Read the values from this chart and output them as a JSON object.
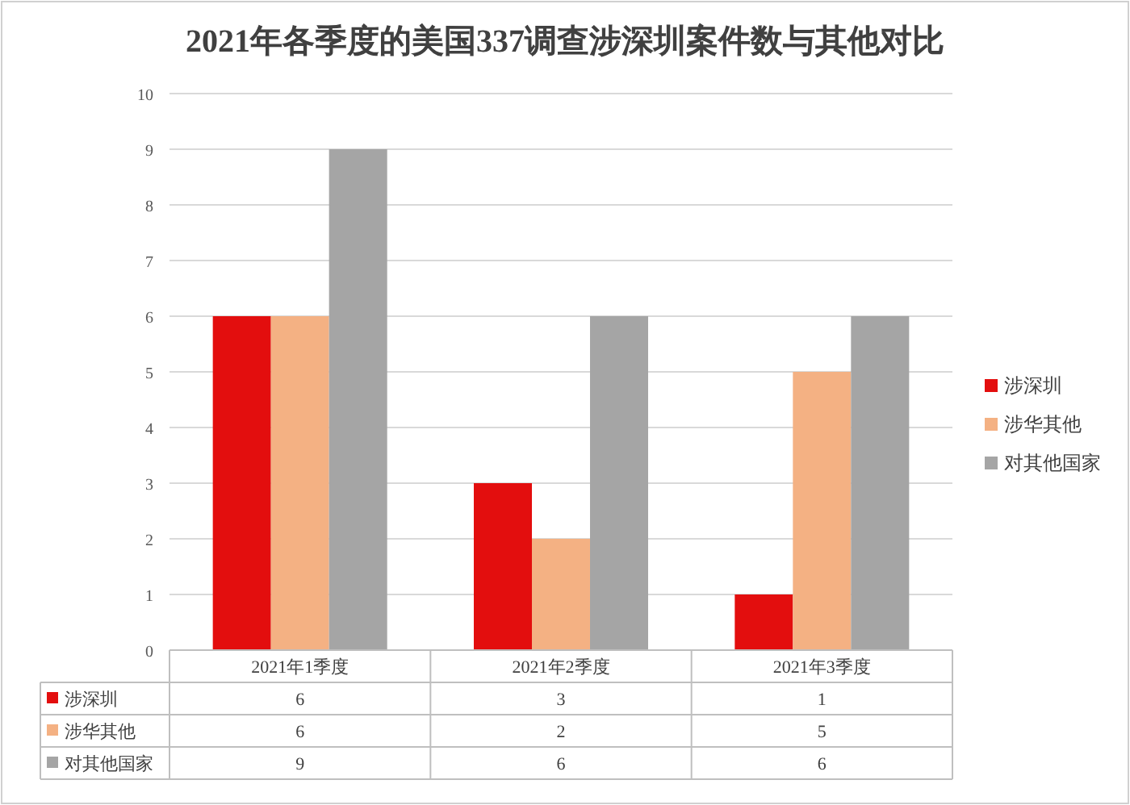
{
  "chart_data": {
    "type": "bar",
    "title": "2021年各季度的美国337调查涉深圳案件数与其他对比",
    "categories": [
      "2021年1季度",
      "2021年2季度",
      "2021年3季度"
    ],
    "series": [
      {
        "name": "涉深圳",
        "color": "#e30e0e",
        "values": [
          6,
          3,
          1
        ]
      },
      {
        "name": "涉华其他",
        "color": "#f4b183",
        "values": [
          6,
          2,
          5
        ]
      },
      {
        "name": "对其他国家",
        "color": "#a5a5a5",
        "values": [
          9,
          6,
          6
        ]
      }
    ],
    "ylim": [
      0,
      10
    ],
    "yticks": [
      0,
      1,
      2,
      3,
      4,
      5,
      6,
      7,
      8,
      9,
      10
    ],
    "grid": "y",
    "legend": "right",
    "data_labels": true
  }
}
